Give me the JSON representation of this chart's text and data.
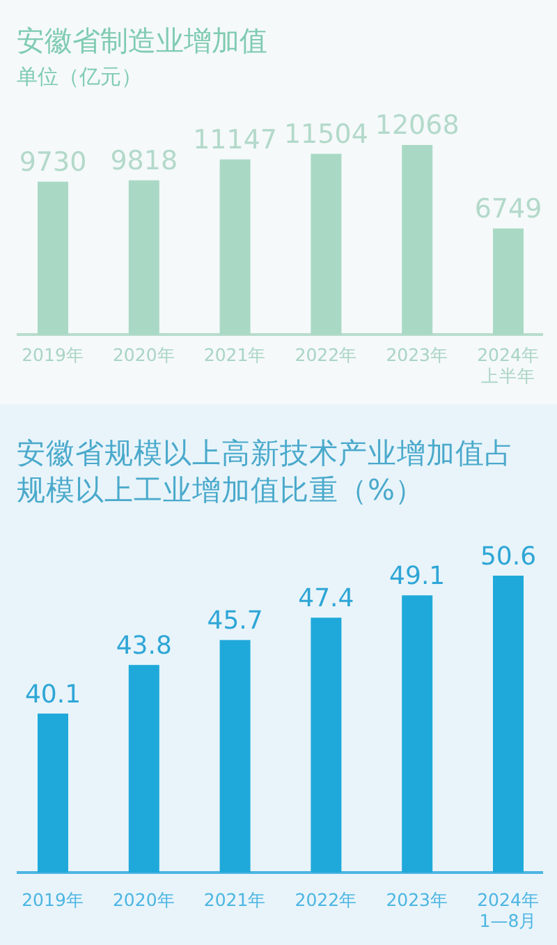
{
  "chart_data": [
    {
      "type": "bar",
      "title": "安徽省制造业增加值",
      "subtitle": "单位（亿元）",
      "categories": [
        "2019年",
        "2020年",
        "2021年",
        "2022年",
        "2023年",
        "2024年上半年"
      ],
      "values": [
        9730,
        9818,
        11147,
        11504,
        12068,
        6749
      ],
      "color": "#a9d9c5",
      "data_labels": true,
      "ylim": [
        0,
        12068
      ]
    },
    {
      "type": "bar",
      "title": "安徽省规模以上高新技术产业增加值占规模以上工业增加值比重（%）",
      "categories": [
        "2019年",
        "2020年",
        "2021年",
        "2022年",
        "2023年",
        "2024年1—8月"
      ],
      "values": [
        40.1,
        43.8,
        45.7,
        47.4,
        49.1,
        50.6
      ],
      "color": "#1fa9da",
      "data_labels": true,
      "ylim": [
        28,
        50.6
      ]
    }
  ]
}
